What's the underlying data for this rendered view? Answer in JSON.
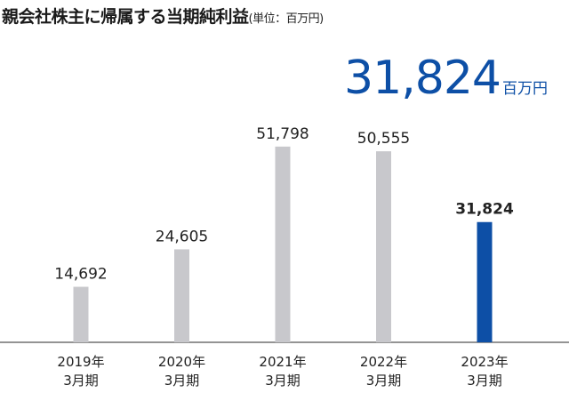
{
  "title": "親会社株主に帰属する当期純利益",
  "unit_label": "(単位：百万円)",
  "headline": {
    "value": "31,824",
    "unit": "百万円"
  },
  "colors": {
    "default_bar": "#c8c8cc",
    "highlight_bar": "#0d4fa6",
    "axis": "#555555"
  },
  "chart_data": {
    "type": "bar",
    "categories": [
      [
        "2019年",
        "3月期"
      ],
      [
        "2020年",
        "3月期"
      ],
      [
        "2021年",
        "3月期"
      ],
      [
        "2022年",
        "3月期"
      ],
      [
        "2023年",
        "3月期"
      ]
    ],
    "values": [
      14692,
      24605,
      51798,
      50555,
      31824
    ],
    "value_labels": [
      "14,692",
      "24,605",
      "51,798",
      "50,555",
      "31,824"
    ],
    "highlight_index": 4,
    "ylim": [
      0,
      60000
    ],
    "grid": false,
    "legend": "none"
  }
}
